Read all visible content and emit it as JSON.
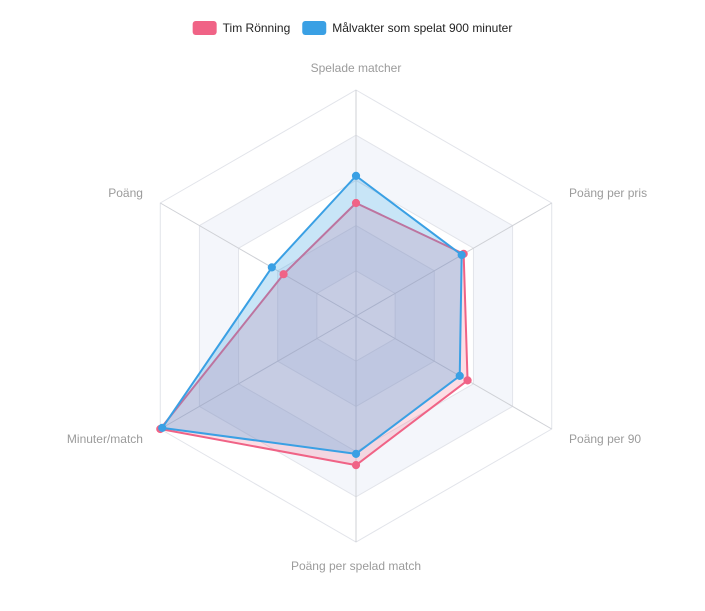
{
  "chart_data": {
    "type": "radar",
    "axes": [
      "Spelade matcher",
      "Poäng per pris",
      "Poäng per 90",
      "Poäng per spelad match",
      "Minuter/match",
      "Poäng"
    ],
    "scale": {
      "min": 0,
      "max": 100,
      "ticks": [
        20,
        40,
        60,
        80,
        100
      ]
    },
    "grid": true,
    "legend_position": "top",
    "series": [
      {
        "name": "Tim Rönning",
        "color": "#f06386",
        "fill": "rgba(240,99,134,0.22)",
        "values": [
          50,
          55,
          57,
          66,
          100,
          37
        ]
      },
      {
        "name": "Målvakter som spelat 900 minuter",
        "color": "#3aa0e4",
        "fill": "rgba(58,160,228,0.28)",
        "values": [
          62,
          54,
          53,
          61,
          99,
          43
        ]
      }
    ]
  }
}
